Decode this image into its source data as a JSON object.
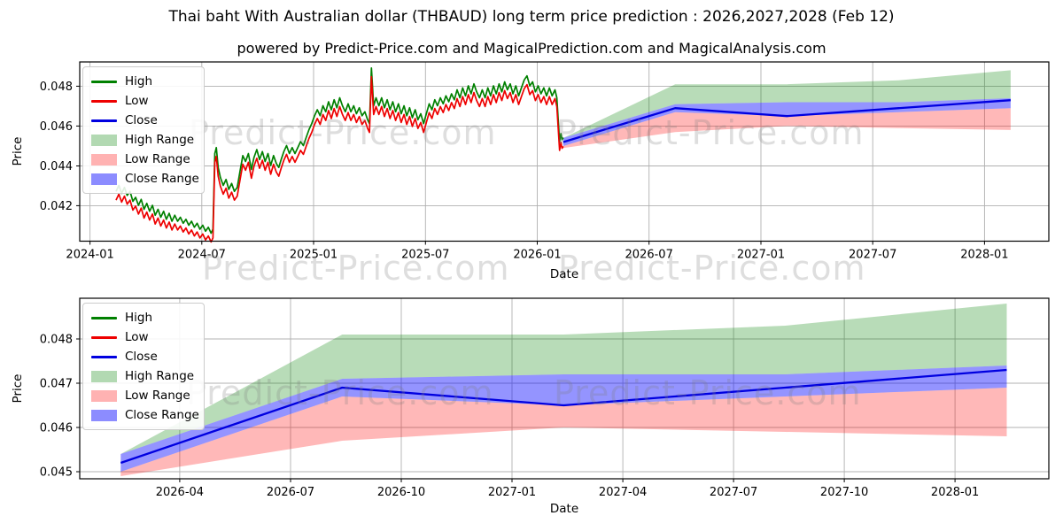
{
  "title": "Thai baht With Australian dollar (THBAUD) long term price prediction : 2026,2027,2028 (Feb 12)",
  "subtitle": "powered by Predict-Price.com and MagicalPrediction.com and MagicalAnalysis.com",
  "watermark_text": "Predict-Price.com",
  "colors": {
    "high": "#008000",
    "low": "#ee0000",
    "close": "#0000e0",
    "high_range": "rgba(0,128,0,0.28)",
    "low_range": "rgba(255,0,0,0.28)",
    "close_range": "rgba(0,0,255,0.42)",
    "grid": "#b0b0b0",
    "axis": "#000000"
  },
  "legend_items": [
    {
      "label": "High",
      "type": "line",
      "color": "#008000"
    },
    {
      "label": "Low",
      "type": "line",
      "color": "#ee0000"
    },
    {
      "label": "Close",
      "type": "line",
      "color": "#0000e0"
    },
    {
      "label": "High Range",
      "type": "patch",
      "color": "rgba(0,128,0,0.3)"
    },
    {
      "label": "Low Range",
      "type": "patch",
      "color": "rgba(255,0,0,0.3)"
    },
    {
      "label": "Close Range",
      "type": "patch",
      "color": "rgba(0,0,255,0.45)"
    }
  ],
  "chart_data": [
    {
      "type": "line",
      "name": "history-and-prediction",
      "xlabel": "Date",
      "ylabel": "Price",
      "grid": true,
      "legend_position": "upper left",
      "x_domain": [
        -0.55,
        51.45
      ],
      "y_domain": [
        0.04022,
        0.04922
      ],
      "x_ticks": [
        {
          "m": 0,
          "label": "2024-01"
        },
        {
          "m": 6,
          "label": "2024-07"
        },
        {
          "m": 12,
          "label": "2025-01"
        },
        {
          "m": 18,
          "label": "2025-07"
        },
        {
          "m": 24,
          "label": "2026-01"
        },
        {
          "m": 30,
          "label": "2026-07"
        },
        {
          "m": 36,
          "label": "2027-01"
        },
        {
          "m": 42,
          "label": "2027-07"
        },
        {
          "m": 48,
          "label": "2028-01"
        }
      ],
      "y_ticks": [
        {
          "v": 0.042,
          "label": "0.042"
        },
        {
          "v": 0.044,
          "label": "0.044"
        },
        {
          "v": 0.046,
          "label": "0.046"
        },
        {
          "v": 0.048,
          "label": "0.048"
        }
      ],
      "historical": {
        "note": "m = months since 2024-01-01, value = close; high/low lines = close +/- offset",
        "high_offset": 0.00022,
        "low_offset": 0.00022,
        "close": [
          [
            1.4,
            0.0425
          ],
          [
            1.55,
            0.0428
          ],
          [
            1.7,
            0.0424
          ],
          [
            1.85,
            0.0427
          ],
          [
            2.0,
            0.0423
          ],
          [
            2.15,
            0.0425
          ],
          [
            2.3,
            0.042
          ],
          [
            2.45,
            0.0422
          ],
          [
            2.6,
            0.0418
          ],
          [
            2.75,
            0.0421
          ],
          [
            2.9,
            0.0416
          ],
          [
            3.05,
            0.0419
          ],
          [
            3.2,
            0.0415
          ],
          [
            3.35,
            0.0418
          ],
          [
            3.5,
            0.0413
          ],
          [
            3.65,
            0.0416
          ],
          [
            3.8,
            0.0412
          ],
          [
            3.95,
            0.0415
          ],
          [
            4.1,
            0.0411
          ],
          [
            4.25,
            0.0414
          ],
          [
            4.4,
            0.041
          ],
          [
            4.55,
            0.0413
          ],
          [
            4.7,
            0.041
          ],
          [
            4.85,
            0.0412
          ],
          [
            5.0,
            0.0409
          ],
          [
            5.15,
            0.0411
          ],
          [
            5.3,
            0.0408
          ],
          [
            5.45,
            0.041
          ],
          [
            5.6,
            0.0407
          ],
          [
            5.75,
            0.0409
          ],
          [
            5.9,
            0.0406
          ],
          [
            6.05,
            0.0408
          ],
          [
            6.2,
            0.0405
          ],
          [
            6.35,
            0.0407
          ],
          [
            6.5,
            0.0404
          ],
          [
            6.6,
            0.0406
          ],
          [
            6.7,
            0.0444
          ],
          [
            6.78,
            0.0447
          ],
          [
            6.88,
            0.0437
          ],
          [
            7.0,
            0.0432
          ],
          [
            7.15,
            0.0428
          ],
          [
            7.3,
            0.0431
          ],
          [
            7.45,
            0.0426
          ],
          [
            7.6,
            0.0429
          ],
          [
            7.75,
            0.0425
          ],
          [
            7.9,
            0.0427
          ],
          [
            8.05,
            0.0435
          ],
          [
            8.2,
            0.0443
          ],
          [
            8.35,
            0.044
          ],
          [
            8.5,
            0.0444
          ],
          [
            8.66,
            0.0436
          ],
          [
            8.8,
            0.0442
          ],
          [
            8.95,
            0.0446
          ],
          [
            9.1,
            0.0441
          ],
          [
            9.25,
            0.0445
          ],
          [
            9.4,
            0.044
          ],
          [
            9.55,
            0.0444
          ],
          [
            9.7,
            0.0438
          ],
          [
            9.85,
            0.0443
          ],
          [
            10.0,
            0.0439
          ],
          [
            10.13,
            0.0437
          ],
          [
            10.26,
            0.0441
          ],
          [
            10.4,
            0.0445
          ],
          [
            10.55,
            0.0448
          ],
          [
            10.7,
            0.0444
          ],
          [
            10.85,
            0.0447
          ],
          [
            11.0,
            0.0444
          ],
          [
            11.15,
            0.0447
          ],
          [
            11.3,
            0.045
          ],
          [
            11.45,
            0.0448
          ],
          [
            11.6,
            0.0452
          ],
          [
            11.75,
            0.0456
          ],
          [
            11.9,
            0.0459
          ],
          [
            12.05,
            0.0463
          ],
          [
            12.2,
            0.0466
          ],
          [
            12.35,
            0.0463
          ],
          [
            12.5,
            0.0468
          ],
          [
            12.65,
            0.0465
          ],
          [
            12.8,
            0.047
          ],
          [
            12.95,
            0.0466
          ],
          [
            13.1,
            0.0471
          ],
          [
            13.25,
            0.0467
          ],
          [
            13.4,
            0.0472
          ],
          [
            13.55,
            0.0468
          ],
          [
            13.7,
            0.0465
          ],
          [
            13.85,
            0.0469
          ],
          [
            14.0,
            0.0465
          ],
          [
            14.15,
            0.0468
          ],
          [
            14.3,
            0.0464
          ],
          [
            14.45,
            0.0467
          ],
          [
            14.6,
            0.0463
          ],
          [
            14.75,
            0.0465
          ],
          [
            14.9,
            0.0461
          ],
          [
            15.0,
            0.0459
          ],
          [
            15.1,
            0.0487
          ],
          [
            15.22,
            0.0468
          ],
          [
            15.35,
            0.0472
          ],
          [
            15.5,
            0.0468
          ],
          [
            15.65,
            0.0472
          ],
          [
            15.8,
            0.0467
          ],
          [
            15.95,
            0.0471
          ],
          [
            16.1,
            0.0466
          ],
          [
            16.25,
            0.047
          ],
          [
            16.4,
            0.0465
          ],
          [
            16.55,
            0.0469
          ],
          [
            16.7,
            0.0464
          ],
          [
            16.85,
            0.0468
          ],
          [
            17.0,
            0.0463
          ],
          [
            17.15,
            0.0467
          ],
          [
            17.3,
            0.0462
          ],
          [
            17.45,
            0.0466
          ],
          [
            17.6,
            0.0461
          ],
          [
            17.75,
            0.0464
          ],
          [
            17.9,
            0.0459
          ],
          [
            18.05,
            0.0464
          ],
          [
            18.2,
            0.0469
          ],
          [
            18.35,
            0.0466
          ],
          [
            18.5,
            0.0471
          ],
          [
            18.65,
            0.0468
          ],
          [
            18.8,
            0.0472
          ],
          [
            18.95,
            0.0469
          ],
          [
            19.1,
            0.0473
          ],
          [
            19.25,
            0.047
          ],
          [
            19.4,
            0.0474
          ],
          [
            19.55,
            0.0471
          ],
          [
            19.7,
            0.0476
          ],
          [
            19.85,
            0.0472
          ],
          [
            20.0,
            0.0477
          ],
          [
            20.15,
            0.0473
          ],
          [
            20.3,
            0.0478
          ],
          [
            20.45,
            0.0474
          ],
          [
            20.6,
            0.0479
          ],
          [
            20.75,
            0.0475
          ],
          [
            20.9,
            0.0472
          ],
          [
            21.05,
            0.0476
          ],
          [
            21.2,
            0.0472
          ],
          [
            21.35,
            0.0477
          ],
          [
            21.5,
            0.0473
          ],
          [
            21.65,
            0.0478
          ],
          [
            21.8,
            0.0474
          ],
          [
            21.95,
            0.0479
          ],
          [
            22.1,
            0.0475
          ],
          [
            22.25,
            0.048
          ],
          [
            22.4,
            0.0476
          ],
          [
            22.55,
            0.0479
          ],
          [
            22.7,
            0.0474
          ],
          [
            22.85,
            0.0478
          ],
          [
            23.0,
            0.0473
          ],
          [
            23.15,
            0.0477
          ],
          [
            23.3,
            0.0481
          ],
          [
            23.45,
            0.0483
          ],
          [
            23.6,
            0.0478
          ],
          [
            23.75,
            0.048
          ],
          [
            23.9,
            0.0475
          ],
          [
            24.05,
            0.0478
          ],
          [
            24.2,
            0.0474
          ],
          [
            24.35,
            0.0477
          ],
          [
            24.5,
            0.0473
          ],
          [
            24.65,
            0.0477
          ],
          [
            24.8,
            0.0473
          ],
          [
            24.95,
            0.0476
          ],
          [
            25.05,
            0.0472
          ],
          [
            25.13,
            0.046
          ],
          [
            25.2,
            0.045
          ],
          [
            25.27,
            0.0454
          ],
          [
            25.33,
            0.0451
          ],
          [
            25.4,
            0.0452
          ]
        ]
      },
      "prediction": {
        "note": "t = months since 2026-02-12 (prediction date); start_m maps t onto this chart's month axis",
        "start_m": 25.4,
        "t": [
          0,
          6,
          12,
          18,
          24
        ],
        "t_dates": [
          "2026-02-12",
          "2026-08-12",
          "2027-02-12",
          "2027-08-12",
          "2028-02-12"
        ],
        "close": [
          0.0452,
          0.0469,
          0.0465,
          0.0469,
          0.0473
        ],
        "close_top": [
          0.0454,
          0.0471,
          0.0472,
          0.0472,
          0.0474
        ],
        "close_bottom": [
          0.045,
          0.0467,
          0.0465,
          0.0467,
          0.0469
        ],
        "high_top": [
          0.0454,
          0.0481,
          0.0481,
          0.0483,
          0.0488
        ],
        "low_bottom": [
          0.0449,
          0.0457,
          0.046,
          0.0459,
          0.0458
        ]
      }
    },
    {
      "type": "line",
      "name": "prediction-zoom",
      "xlabel": "Date",
      "ylabel": "Price",
      "grid": true,
      "legend_position": "upper left",
      "x_domain": [
        0.29,
        26.54
      ],
      "y_domain": [
        0.04484,
        0.04892
      ],
      "x_ticks": [
        {
          "m": 3,
          "label": "2026-04"
        },
        {
          "m": 6,
          "label": "2026-07"
        },
        {
          "m": 9,
          "label": "2026-10"
        },
        {
          "m": 12,
          "label": "2027-01"
        },
        {
          "m": 15,
          "label": "2027-04"
        },
        {
          "m": 18,
          "label": "2027-07"
        },
        {
          "m": 21,
          "label": "2027-10"
        },
        {
          "m": 24,
          "label": "2028-01"
        }
      ],
      "y_ticks": [
        {
          "v": 0.045,
          "label": "0.045"
        },
        {
          "v": 0.046,
          "label": "0.046"
        },
        {
          "v": 0.047,
          "label": "0.047"
        },
        {
          "v": 0.048,
          "label": "0.048"
        }
      ],
      "prediction": {
        "note": "same prediction series; m axis = months since 2026-01-01",
        "start_m": 1.4,
        "t": [
          0,
          6,
          12,
          18,
          24
        ],
        "t_dates": [
          "2026-02-12",
          "2026-08-12",
          "2027-02-12",
          "2027-08-12",
          "2028-02-12"
        ],
        "close": [
          0.0452,
          0.0469,
          0.0465,
          0.0469,
          0.0473
        ],
        "close_top": [
          0.0454,
          0.0471,
          0.0472,
          0.0472,
          0.0474
        ],
        "close_bottom": [
          0.045,
          0.0467,
          0.0465,
          0.0467,
          0.0469
        ],
        "high_top": [
          0.0454,
          0.0481,
          0.0481,
          0.0483,
          0.0488
        ],
        "low_bottom": [
          0.0449,
          0.0457,
          0.046,
          0.0459,
          0.0458
        ]
      }
    }
  ]
}
